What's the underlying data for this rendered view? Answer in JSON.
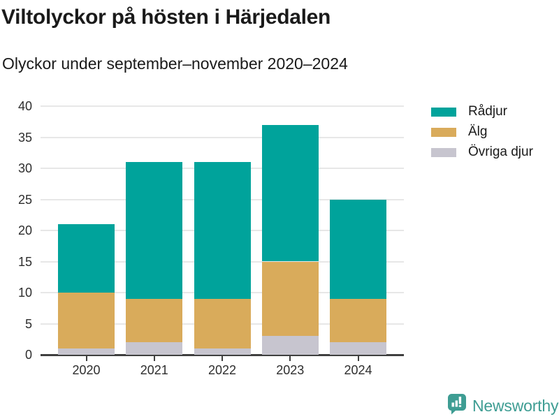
{
  "header": {
    "title": "Viltolyckor på hösten i Härjedalen",
    "subtitle": "Olyckor under september–november 2020–2024"
  },
  "chart_data": {
    "type": "bar",
    "stacked": true,
    "title": "Viltolyckor på hösten i Härjedalen",
    "subtitle": "Olyckor under september–november 2020–2024",
    "categories": [
      "2020",
      "2021",
      "2022",
      "2023",
      "2024"
    ],
    "series": [
      {
        "name": "Rådjur",
        "color": "#00a39b",
        "values": [
          11,
          22,
          22,
          22,
          16
        ]
      },
      {
        "name": "Älg",
        "color": "#d9ab5b",
        "values": [
          9,
          7,
          8,
          12,
          7
        ]
      },
      {
        "name": "Övriga djur",
        "color": "#c7c5cf",
        "values": [
          1,
          2,
          1,
          3,
          2
        ]
      }
    ],
    "stack_order_bottom_to_top": [
      "Övriga djur",
      "Älg",
      "Rådjur"
    ],
    "xlabel": "",
    "ylabel": "",
    "ylim": [
      0,
      40
    ],
    "yticks": [
      0,
      5,
      10,
      15,
      20,
      25,
      30,
      35,
      40
    ],
    "grid": true,
    "legend_position": "right",
    "legend_items": [
      "Rådjur",
      "Älg",
      "Övriga djur"
    ]
  },
  "colors": {
    "radjur": "#00a39b",
    "alg": "#d9ab5b",
    "ovriga_djur": "#c7c5cf",
    "gridline": "#e7e7e7",
    "axis": "#3f3f3f",
    "brand": "#3e9d93"
  },
  "footer": {
    "brand": "Newsworthy"
  }
}
